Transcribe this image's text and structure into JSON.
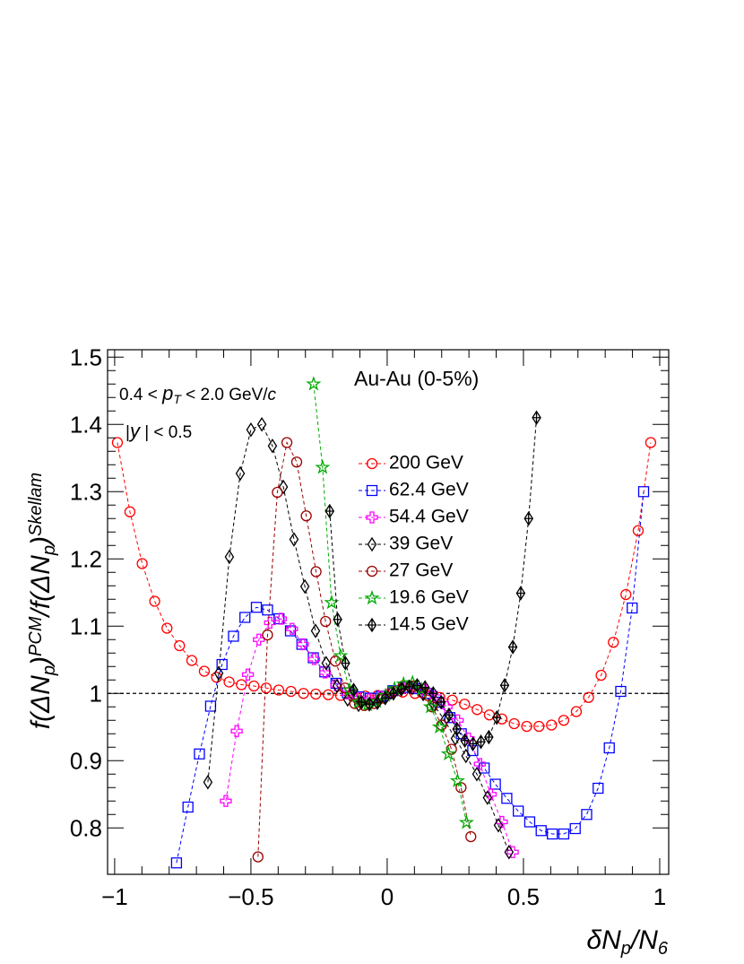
{
  "chart_data": {
    "type": "scatter",
    "ylabel": [
      "f(ΔN",
      "p",
      ")",
      "PCM",
      "/f(ΔN",
      "p",
      ")",
      "Skellam"
    ],
    "xlabel": [
      "δN",
      "p",
      "/N",
      "6"
    ],
    "annotations": [
      [
        "0.4 < ",
        "p",
        "T",
        " < 2.0 GeV/",
        "c"
      ],
      [
        "|",
        "y",
        " | < 0.5"
      ],
      [
        "Au-Au (0-5%)"
      ]
    ],
    "xlim": [
      -1.026,
      1.033
    ],
    "ylim": [
      0.731,
      1.511
    ],
    "xticks": [
      {
        "value": -1,
        "label": "−1"
      },
      {
        "value": -0.5,
        "label": "−0.5"
      },
      0,
      0.5,
      1
    ],
    "yticks": [
      0.8,
      0.9,
      1,
      1.1,
      1.2,
      1.3,
      1.4,
      1.5
    ],
    "hline": 1,
    "series": [
      {
        "name": "200 GeV",
        "color": "#ff0000",
        "marker": "circle",
        "x": [
          -0.99,
          -0.944,
          -0.899,
          -0.853,
          -0.808,
          -0.762,
          -0.717,
          -0.671,
          -0.626,
          -0.58,
          -0.535,
          -0.489,
          -0.444,
          -0.398,
          -0.353,
          -0.307,
          -0.262,
          -0.216,
          -0.171,
          -0.125,
          -0.08,
          -0.034,
          0.011,
          0.057,
          0.102,
          0.148,
          0.193,
          0.239,
          0.284,
          0.33,
          0.375,
          0.421,
          0.466,
          0.512,
          0.557,
          0.603,
          0.648,
          0.694,
          0.739,
          0.785,
          0.83,
          0.876,
          0.921,
          0.967
        ],
        "values": [
          1.373,
          1.27,
          1.193,
          1.137,
          1.097,
          1.071,
          1.049,
          1.033,
          1.024,
          1.017,
          1.013,
          1.011,
          1.008,
          1.005,
          1.003,
          1.0,
          0.999,
          0.998,
          0.997,
          0.996,
          0.996,
          0.997,
          1.0,
          1.002,
          1.0,
          0.997,
          0.994,
          0.99,
          0.984,
          0.976,
          0.968,
          0.962,
          0.955,
          0.951,
          0.951,
          0.953,
          0.96,
          0.973,
          0.994,
          1.027,
          1.076,
          1.147,
          1.242,
          1.373
        ]
      },
      {
        "name": "62.4 GeV",
        "color": "#0000ff",
        "marker": "square",
        "x": [
          -0.773,
          -0.731,
          -0.689,
          -0.648,
          -0.606,
          -0.564,
          -0.522,
          -0.48,
          -0.439,
          -0.397,
          -0.355,
          -0.313,
          -0.271,
          -0.229,
          -0.188,
          -0.146,
          -0.104,
          -0.062,
          -0.021,
          0.021,
          0.063,
          0.105,
          0.147,
          0.188,
          0.23,
          0.272,
          0.314,
          0.356,
          0.397,
          0.439,
          0.481,
          0.523,
          0.565,
          0.606,
          0.648,
          0.69,
          0.732,
          0.774,
          0.815,
          0.857,
          0.899,
          0.941
        ],
        "values": [
          0.748,
          0.831,
          0.91,
          0.981,
          1.043,
          1.085,
          1.113,
          1.128,
          1.124,
          1.111,
          1.093,
          1.073,
          1.053,
          1.032,
          1.015,
          1.001,
          0.995,
          0.993,
          0.996,
          1.004,
          1.009,
          1.007,
          1.0,
          0.987,
          0.964,
          0.94,
          0.915,
          0.889,
          0.865,
          0.844,
          0.825,
          0.809,
          0.796,
          0.791,
          0.791,
          0.799,
          0.82,
          0.859,
          0.919,
          1.003,
          1.127,
          1.3
        ]
      },
      {
        "name": "54.4 GeV",
        "color": "#ff00ff",
        "marker": "cross",
        "x": [
          -0.592,
          -0.552,
          -0.511,
          -0.471,
          -0.43,
          -0.39,
          -0.349,
          -0.309,
          -0.268,
          -0.228,
          -0.187,
          -0.147,
          -0.106,
          -0.066,
          -0.025,
          0.016,
          0.056,
          0.097,
          0.137,
          0.178,
          0.218,
          0.259,
          0.299,
          0.34,
          0.38,
          0.421,
          0.461
        ],
        "values": [
          0.84,
          0.944,
          1.028,
          1.08,
          1.105,
          1.111,
          1.096,
          1.073,
          1.051,
          1.031,
          1.012,
          1.0,
          0.993,
          0.991,
          0.995,
          1.002,
          1.008,
          1.009,
          1.005,
          0.995,
          0.98,
          0.96,
          0.933,
          0.895,
          0.85,
          0.809,
          0.764
        ]
      },
      {
        "name": "39 GeV",
        "color": "#000000",
        "marker": "diamond",
        "x": [
          -0.658,
          -0.618,
          -0.579,
          -0.539,
          -0.5,
          -0.46,
          -0.421,
          -0.381,
          -0.342,
          -0.302,
          -0.263,
          -0.224,
          -0.184,
          -0.145,
          -0.105,
          -0.066,
          -0.026,
          0.013,
          0.053,
          0.092,
          0.132,
          0.171,
          0.211,
          0.25,
          0.289,
          0.329,
          0.368,
          0.408,
          0.447
        ],
        "values": [
          0.868,
          1.03,
          1.203,
          1.327,
          1.392,
          1.4,
          1.368,
          1.307,
          1.229,
          1.159,
          1.093,
          1.045,
          1.011,
          0.991,
          0.983,
          0.984,
          0.992,
          1.001,
          1.008,
          1.008,
          0.999,
          0.983,
          0.96,
          0.933,
          0.907,
          0.88,
          0.845,
          0.804,
          0.764
        ]
      },
      {
        "name": "27 GeV",
        "color": "#990000",
        "marker": "circle",
        "x": [
          -0.474,
          -0.439,
          -0.403,
          -0.368,
          -0.332,
          -0.297,
          -0.261,
          -0.226,
          -0.19,
          -0.155,
          -0.119,
          -0.084,
          -0.048,
          -0.013,
          0.023,
          0.058,
          0.094,
          0.129,
          0.165,
          0.2,
          0.236,
          0.271,
          0.307
        ],
        "values": [
          0.757,
          1.087,
          1.299,
          1.373,
          1.344,
          1.264,
          1.181,
          1.107,
          1.048,
          1.008,
          0.985,
          0.982,
          0.985,
          0.993,
          1.003,
          1.011,
          1.011,
          1.001,
          0.98,
          0.953,
          0.917,
          0.86,
          0.787
        ]
      },
      {
        "name": "19.6 GeV",
        "color": "#00aa00",
        "marker": "star",
        "x": [
          -0.27,
          -0.237,
          -0.204,
          -0.171,
          -0.138,
          -0.105,
          -0.072,
          -0.039,
          -0.006,
          0.027,
          0.06,
          0.093,
          0.126,
          0.159,
          0.192,
          0.225,
          0.258,
          0.291
        ],
        "values": [
          1.46,
          1.336,
          1.135,
          1.056,
          1.005,
          0.987,
          0.983,
          0.988,
          0.997,
          1.007,
          1.014,
          1.016,
          1.006,
          0.98,
          0.95,
          0.91,
          0.87,
          0.808
        ]
      },
      {
        "name": "14.5 GeV",
        "color": "#000000",
        "marker": "diamondcross",
        "x": [
          -0.211,
          -0.182,
          -0.153,
          -0.123,
          -0.094,
          -0.065,
          -0.036,
          -0.007,
          0.023,
          0.052,
          0.081,
          0.11,
          0.139,
          0.169,
          0.198,
          0.227,
          0.256,
          0.285,
          0.315,
          0.344,
          0.373,
          0.402,
          0.431,
          0.461,
          0.49,
          0.519,
          0.548
        ],
        "values": [
          1.271,
          1.11,
          1.045,
          1.005,
          0.987,
          0.984,
          0.986,
          0.993,
          1.0,
          1.006,
          1.01,
          1.012,
          1.009,
          1.0,
          0.987,
          0.968,
          0.947,
          0.93,
          0.925,
          0.928,
          0.935,
          0.964,
          1.012,
          1.069,
          1.149,
          1.26,
          1.41
        ]
      }
    ]
  }
}
